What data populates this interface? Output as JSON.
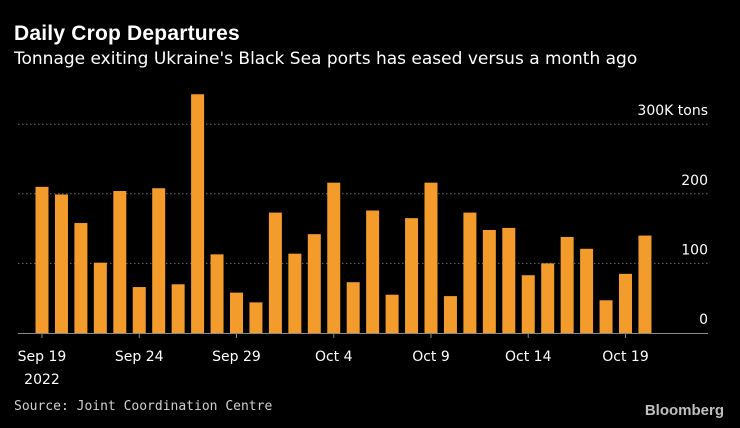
{
  "title": "Daily Crop Departures",
  "subtitle": "Tonnage exiting Ukraine's Black Sea ports has eased versus a month ago",
  "source": "Source: Joint Coordination Centre",
  "brand": "Bloomberg",
  "colors": {
    "bar": "#f39c2b",
    "grid": "#6a6a6a",
    "axis": "#8a8a8a"
  },
  "chart_data": {
    "type": "bar",
    "title": "Daily Crop Departures",
    "subtitle": "Tonnage exiting Ukraine's Black Sea ports has eased versus a month ago",
    "xlabel": "",
    "ylabel": "",
    "ylim": [
      0,
      300
    ],
    "y_unit": "K tons",
    "y_ticks": [
      0,
      100,
      200,
      300
    ],
    "y_tick_labels": [
      "0",
      "100",
      "200",
      "300K tons"
    ],
    "x_tick_labels": [
      {
        "label": "Sep 19",
        "index": 0,
        "sublabel": "2022"
      },
      {
        "label": "Sep 24",
        "index": 5
      },
      {
        "label": "Sep 29",
        "index": 10
      },
      {
        "label": "Oct 4",
        "index": 15
      },
      {
        "label": "Oct 9",
        "index": 20
      },
      {
        "label": "Oct 14",
        "index": 25
      },
      {
        "label": "Oct 19",
        "index": 30
      }
    ],
    "categories": [
      "Sep 19",
      "Sep 20",
      "Sep 21",
      "Sep 22",
      "Sep 23",
      "Sep 24",
      "Sep 25",
      "Sep 26",
      "Sep 27",
      "Sep 28",
      "Sep 29",
      "Sep 30",
      "Oct 1",
      "Oct 2",
      "Oct 3",
      "Oct 4",
      "Oct 5",
      "Oct 6",
      "Oct 7",
      "Oct 8",
      "Oct 9",
      "Oct 10",
      "Oct 11",
      "Oct 12",
      "Oct 13",
      "Oct 14",
      "Oct 15",
      "Oct 16",
      "Oct 17",
      "Oct 18",
      "Oct 19",
      "Oct 20"
    ],
    "values": [
      210,
      199,
      158,
      101,
      204,
      66,
      208,
      70,
      343,
      113,
      58,
      44,
      173,
      114,
      142,
      216,
      73,
      176,
      55,
      165,
      216,
      53,
      173,
      148,
      151,
      83,
      100,
      138,
      121,
      47,
      85,
      140
    ]
  }
}
